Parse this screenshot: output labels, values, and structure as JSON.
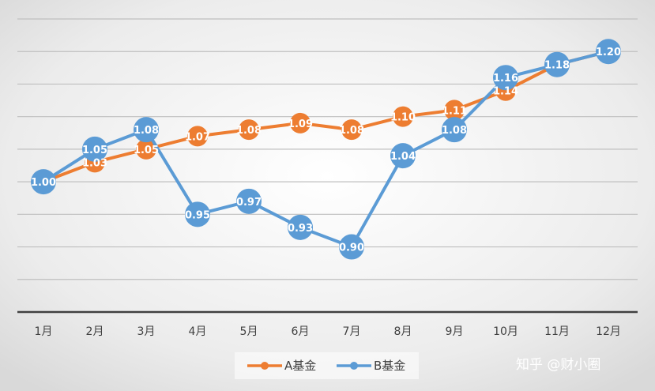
{
  "chart_data": {
    "type": "line",
    "categories": [
      "1月",
      "2月",
      "3月",
      "4月",
      "5月",
      "6月",
      "7月",
      "8月",
      "9月",
      "10月",
      "11月",
      "12月"
    ],
    "series": [
      {
        "name": "A基金",
        "color": "#ED7D31",
        "values": [
          1.0,
          1.03,
          1.05,
          1.07,
          1.08,
          1.09,
          1.08,
          1.1,
          1.11,
          1.14,
          1.18,
          1.2
        ],
        "labels": [
          "",
          "1.03",
          "1.05",
          "1.07",
          "1.08",
          "1.09",
          "1.08",
          "1.10",
          "1.11",
          "1.14",
          "",
          ""
        ]
      },
      {
        "name": "B基金",
        "color": "#5B9BD5",
        "values": [
          1.0,
          1.05,
          1.08,
          0.95,
          0.97,
          0.93,
          0.9,
          1.04,
          1.08,
          1.16,
          1.18,
          1.2
        ],
        "labels": [
          "1.00",
          "1.05",
          "1.08",
          "0.95",
          "0.97",
          "0.93",
          "0.90",
          "1.04",
          "1.08",
          "1.16",
          "1.18",
          "1.20"
        ]
      }
    ],
    "ylim": [
      0.8,
      1.25
    ],
    "grid": true,
    "title": "",
    "xlabel": "",
    "ylabel": "",
    "legend": "bottom-center"
  },
  "watermark": "知乎 @财小圈"
}
